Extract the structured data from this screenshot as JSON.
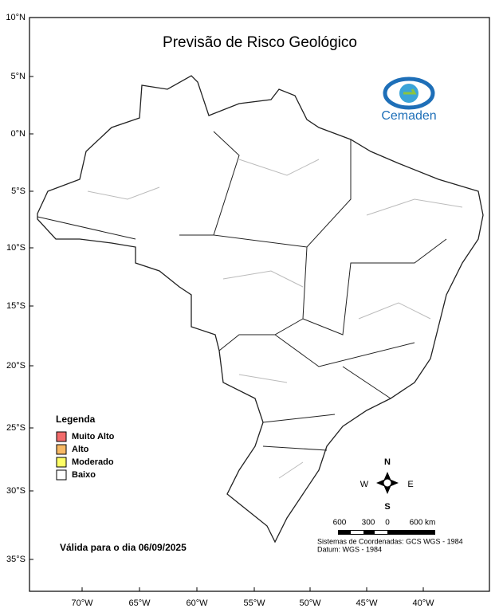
{
  "header": {
    "title": "Previsão de Risco Geológico",
    "logo_text": "Cemaden"
  },
  "axes": {
    "lat_labels": [
      "10°N",
      "5°N",
      "0°N",
      "5°S",
      "10°S",
      "15°S",
      "20°S",
      "25°S",
      "30°S",
      "35°S"
    ],
    "lon_labels": [
      "70°W",
      "65°W",
      "60°W",
      "55°W",
      "50°W",
      "45°W",
      "40°W"
    ]
  },
  "legend": {
    "title": "Legenda",
    "items": [
      {
        "label": "Muito Alto",
        "color": "#f26b6b"
      },
      {
        "label": "Alto",
        "color": "#f7b964"
      },
      {
        "label": "Moderado",
        "color": "#ffff66"
      },
      {
        "label": "Baixo",
        "color": "#ffffff"
      }
    ]
  },
  "validity": "Válida para o dia 06/09/2025",
  "compass": {
    "north": "N",
    "south": "S",
    "east": "E",
    "west": "W"
  },
  "scale_bar": {
    "labels": [
      "600",
      "300",
      "0",
      "600 km"
    ]
  },
  "notes": {
    "coordinate_system": "Sistemas de Coordenadas: GCS WGS - 1984",
    "datum": "Datum: WGS - 1984"
  }
}
